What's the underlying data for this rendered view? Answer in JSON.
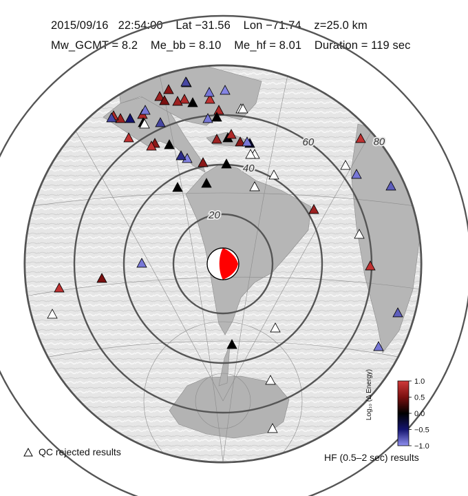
{
  "header": {
    "line1": "2015/09/16   22:54:00    Lat −31.56    Lon −71.74    z=25.0 km",
    "line2": "Mw_GCMT = 8.2    Me_bb = 8.10    Me_hf = 8.01    Duration = 119 sec"
  },
  "map": {
    "projection": "azimuthal equidistant centered on epicenter",
    "epicenter": {
      "lat": -31.56,
      "lon": -71.74
    },
    "distance_rings": [
      {
        "deg": 20,
        "label": "20"
      },
      {
        "deg": 40,
        "label": "40"
      },
      {
        "deg": 60,
        "label": "60"
      },
      {
        "deg": 80,
        "label": "80"
      },
      {
        "deg": 100,
        "label": ""
      }
    ],
    "colors": {
      "ocean": "#ebebeb",
      "land": "#b9b9b9",
      "ring": "#555555",
      "beachball_red": "#ff0000",
      "qc_rejected": "#ffffff"
    }
  },
  "stations": [
    {
      "r": 0.22,
      "v": 0.9
    },
    {
      "r": 0.17,
      "v": 0.8
    },
    {
      "r": 0.26,
      "v": -0.9
    },
    {
      "r": 0.27,
      "v": 0.7
    },
    {
      "r": 0.33,
      "v": 0.8
    },
    {
      "r": 0.31,
      "v": 0.6
    },
    {
      "r": 0.3,
      "v": 0.0
    },
    {
      "r": 0.4,
      "v": -0.95
    },
    {
      "r": 0.43,
      "v": -0.6
    },
    {
      "r": 0.46,
      "v": -0.7
    },
    {
      "r": 0.49,
      "v": -0.9
    },
    {
      "r": 0.49,
      "v": 0.0
    },
    {
      "r": 0.49,
      "v": 0.7
    },
    {
      "r": 0.5,
      "v": 0.8
    },
    {
      "r": 0.54,
      "v": 0.9
    },
    {
      "r": 0.53,
      "v": 0.5
    },
    {
      "r": 0.57,
      "v": 0.9
    },
    {
      "r": 0.65,
      "v": 0.6
    },
    {
      "r": 0.73,
      "v": 0.8
    },
    {
      "r": 0.78,
      "v": 0.0
    },
    {
      "r": 0.83,
      "v": -0.9
    },
    {
      "r": 0.83,
      "v": 0.0
    },
    {
      "r": 0.85,
      "v": 0.7
    },
    {
      "r": 0.85,
      "v": -0.7
    },
    {
      "r": 0.88,
      "v": -0.9
    },
    {
      "r": 0.95,
      "v": -0.95
    },
    {
      "r": 0.95,
      "v": -0.7
    },
    {
      "r": 0.99,
      "v": -0.5
    },
    {
      "r": 0.9,
      "v": 0.6
    },
    {
      "r": 0.91,
      "v": 0.0
    },
    {
      "r": 0.87,
      "v": 0.6
    },
    {
      "r": 0.82,
      "v": 0.0
    },
    {
      "r": 0.8,
      "v": -0.2
    },
    {
      "r": 0.78,
      "v": -0.9
    },
    {
      "r": 0.79,
      "v": 0.8
    },
    {
      "r": 0.73,
      "v": 0.7
    },
    {
      "r": 0.74,
      "v": 0.9
    },
    {
      "r": 0.7,
      "v": -0.9
    },
    {
      "r": 0.67,
      "v": -0.8
    },
    {
      "r": 0.71,
      "v": 0.7
    },
    {
      "r": 0.7,
      "v": 0.9
    },
    {
      "r": 0.7,
      "v": -0.9
    },
    {
      "r": 0.75,
      "v": -0.8
    },
    {
      "r": 0.58,
      "v": 0.9
    },
    {
      "r": 0.42,
      "v": 0.5
    },
    {
      "r": 0.44,
      "v": -0.9
    },
    {
      "r": 0.35,
      "v": 0.0
    },
    {
      "r": 0.33,
      "v": 0.0
    },
    {
      "r": 0.67,
      "v": 0.0
    }
  ],
  "qc_rejected_count": 13,
  "colorbar": {
    "title": "Log₁₀ (Δ Energy)",
    "ticks": [
      "1.0",
      "0.5",
      "0.0",
      "−0.5",
      "−1.0"
    ]
  },
  "legend": {
    "qc_rejected": "QC rejected results"
  },
  "footer": {
    "hf_label": "HF (0.5–2 sec) results"
  }
}
